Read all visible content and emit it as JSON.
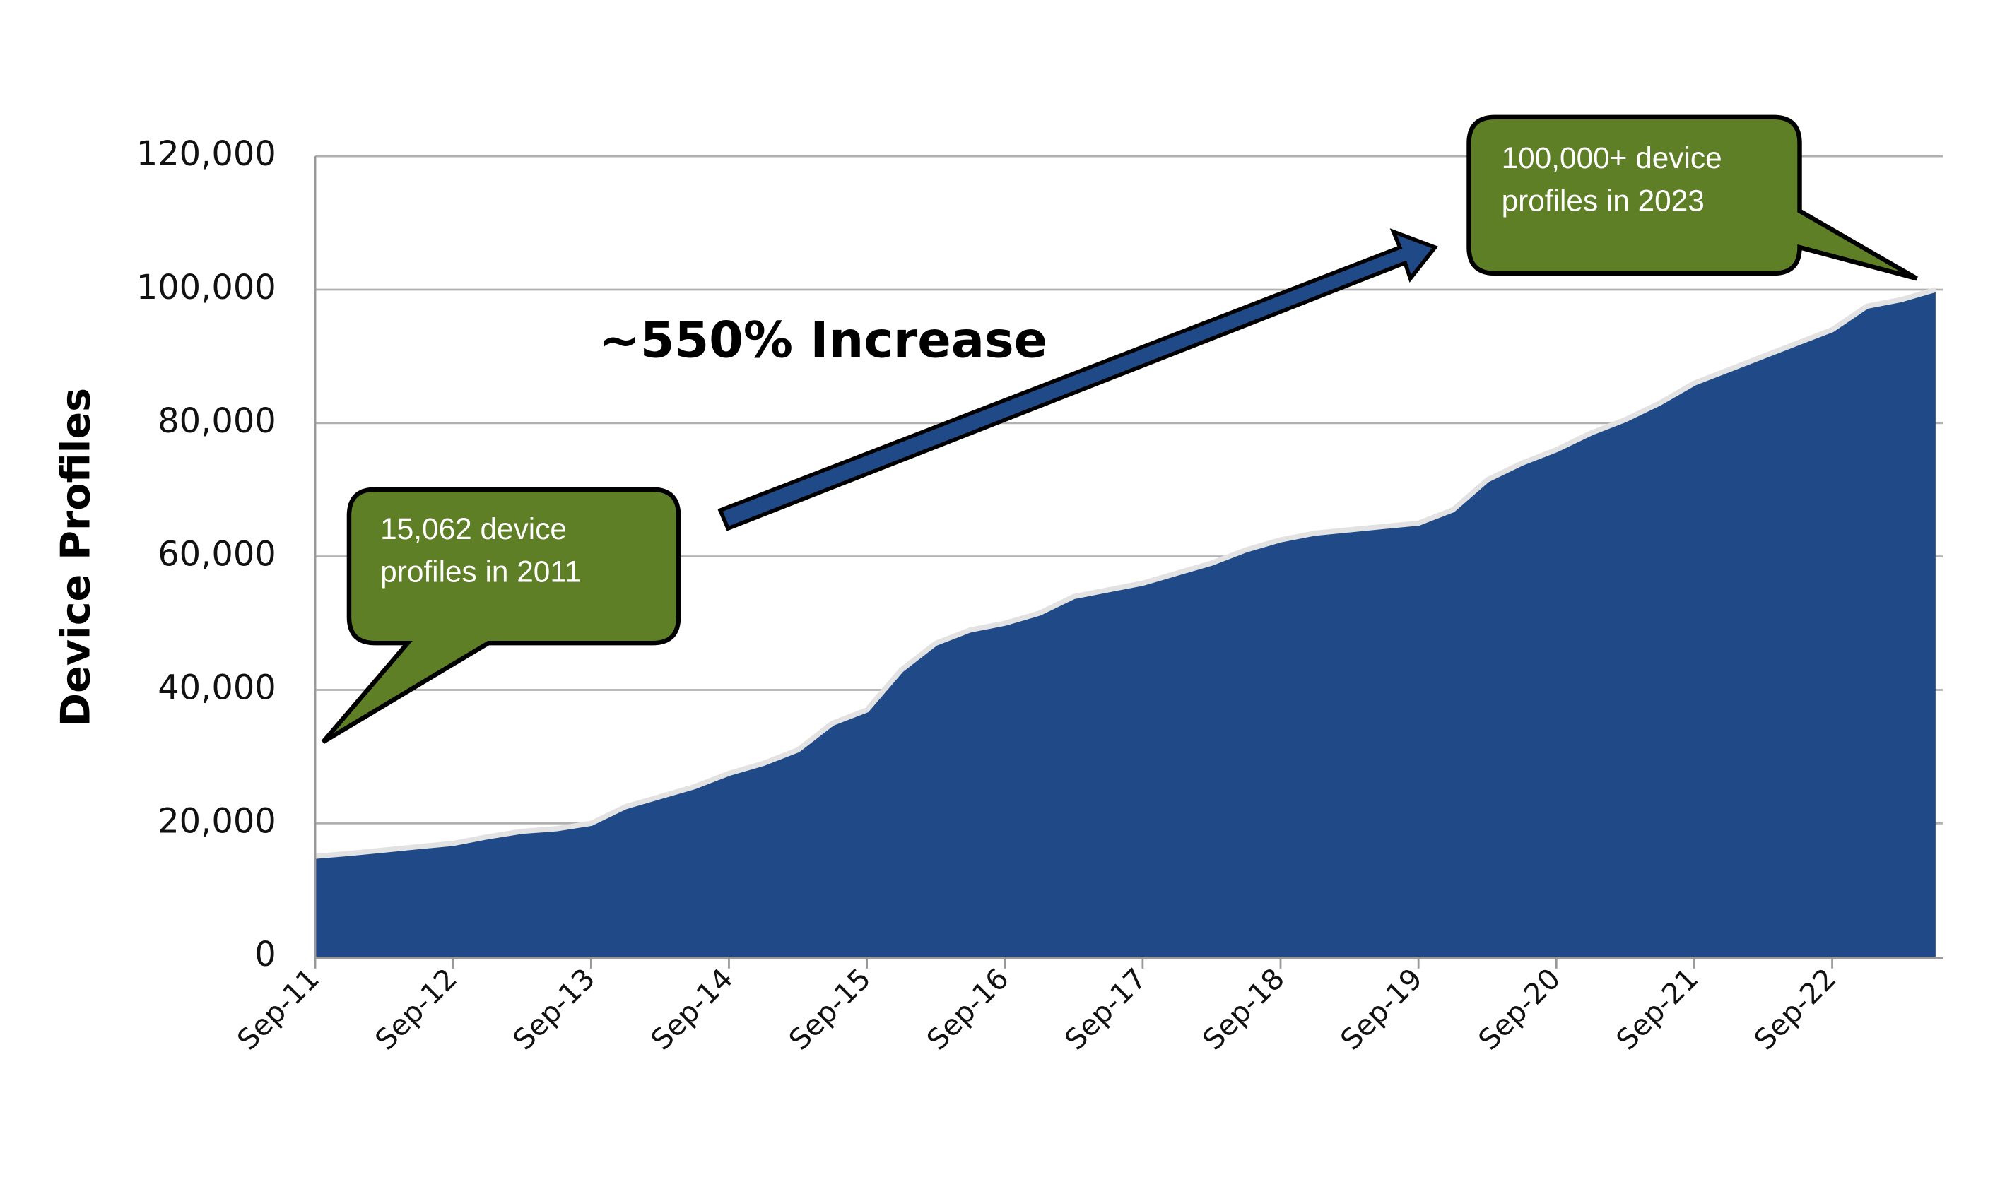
{
  "chart_data": {
    "type": "area",
    "y_label": "Device Profiles",
    "x": [
      "Sep-11",
      "Dec-11",
      "Mar-12",
      "Jun-12",
      "Sep-12",
      "Dec-12",
      "Mar-13",
      "Jun-13",
      "Sep-13",
      "Dec-13",
      "Mar-14",
      "Jun-14",
      "Sep-14",
      "Dec-14",
      "Mar-15",
      "Jun-15",
      "Sep-15",
      "Dec-15",
      "Mar-16",
      "Jun-16",
      "Sep-16",
      "Dec-16",
      "Mar-17",
      "Jun-17",
      "Sep-17",
      "Dec-17",
      "Mar-18",
      "Jun-18",
      "Sep-18",
      "Dec-18",
      "Mar-19",
      "Jun-19",
      "Sep-19",
      "Dec-19",
      "Mar-20",
      "Jun-20",
      "Sep-20",
      "Dec-20",
      "Mar-21",
      "Jun-21",
      "Sep-21",
      "Dec-21",
      "Mar-22",
      "Jun-22",
      "Sep-22",
      "Dec-22",
      "Mar-23",
      "Jun-23"
    ],
    "values": [
      15062,
      15500,
      16000,
      16500,
      17000,
      18000,
      18800,
      19200,
      20000,
      22500,
      24000,
      25500,
      27500,
      29000,
      31000,
      35000,
      37000,
      43000,
      47000,
      49000,
      50000,
      51500,
      54000,
      55000,
      56000,
      57500,
      59000,
      61000,
      62500,
      63500,
      64000,
      64500,
      65000,
      67000,
      71500,
      74000,
      76000,
      78500,
      80500,
      83000,
      86000,
      88000,
      90000,
      92000,
      94000,
      97500,
      98500,
      100000
    ],
    "color": "#1f4a87",
    "xticks": [
      "Sep-11",
      "Sep-12",
      "Sep-13",
      "Sep-14",
      "Sep-15",
      "Sep-16",
      "Sep-17",
      "Sep-18",
      "Sep-19",
      "Sep-20",
      "Sep-21",
      "Sep-22"
    ],
    "ylim": [
      0,
      120000
    ],
    "yticks": [
      0,
      {
        "value": 20000,
        "label": "20,000"
      },
      {
        "value": 40000,
        "label": "40,000"
      },
      {
        "value": 60000,
        "label": "60,000"
      },
      {
        "value": 80000,
        "label": "80,000"
      },
      {
        "value": 100000,
        "label": "100,000"
      },
      {
        "value": 120000,
        "label": "120,000"
      }
    ],
    "grid": true,
    "annotations": [
      {
        "lines": [
          "15,062 device",
          "profiles in 2011"
        ]
      },
      {
        "lines": [
          "100,000+ device",
          "profiles in 2023"
        ]
      },
      {
        "text": "~550% Increase"
      }
    ]
  }
}
